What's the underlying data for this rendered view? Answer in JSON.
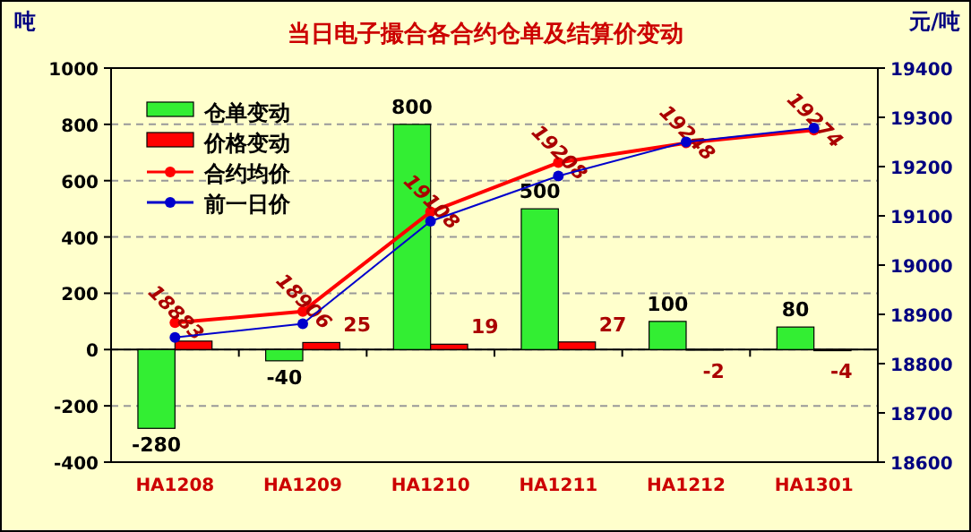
{
  "chart_data": {
    "type": "bar",
    "title": "当日电子撮合各合约仓单及结算价变动",
    "ylabel": "吨",
    "y2label": "元/吨",
    "categories": [
      "HA1208",
      "HA1209",
      "HA1210",
      "HA1211",
      "HA1212",
      "HA1301"
    ],
    "series": [
      {
        "name": "仓单变动",
        "type": "bar",
        "color": "#33ee33",
        "values": [
          -280,
          -40,
          800,
          500,
          100,
          80
        ],
        "data_labels": true
      },
      {
        "name": "价格变动",
        "type": "bar",
        "color": "#ff0000",
        "values": [
          30,
          25,
          19,
          27,
          -2,
          -4
        ],
        "value_labels": [
          null,
          "25",
          "19",
          "27",
          "-2",
          "-4"
        ]
      },
      {
        "name": "合约均价",
        "type": "line",
        "axis": "y2",
        "color": "#ff0000",
        "values": [
          18883,
          18906,
          19108,
          19208,
          19248,
          19274
        ],
        "data_labels": true
      },
      {
        "name": "前一日价",
        "type": "line",
        "axis": "y2",
        "color": "#0000cc",
        "values": [
          18853,
          18881,
          19089,
          19181,
          19250,
          19278
        ]
      }
    ],
    "ylim": [
      -400,
      1000
    ],
    "yticks": [
      -400,
      -200,
      0,
      200,
      400,
      600,
      800,
      1000
    ],
    "y2lim": [
      18600,
      19400
    ],
    "y2ticks": [
      18600,
      18700,
      18800,
      18900,
      19000,
      19100,
      19200,
      19300,
      19400
    ],
    "grid": "y",
    "legend": "top left",
    "marker": "circle"
  }
}
